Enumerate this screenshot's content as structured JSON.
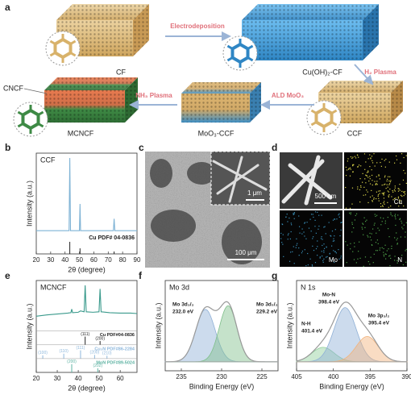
{
  "schematic": {
    "panel": "a",
    "samples": [
      "CF",
      "Cu(OH)₂-CF",
      "CCF",
      "MoO₃-CCF",
      "MCNCF"
    ],
    "inset_label": "CNCF",
    "steps": [
      "Electrodeposition",
      "H₂ Plasma",
      "ALD MoO₃",
      "NH₃ Plasma"
    ]
  },
  "sem": {
    "panel": "c",
    "scale_bars": [
      "100 μm",
      "1 μm"
    ]
  },
  "eds": {
    "panel": "d",
    "scale_bar": "500 nm",
    "elements": [
      "Cu",
      "Mo",
      "N"
    ]
  },
  "chart_data": [
    {
      "panel": "b",
      "type": "line",
      "label": "CCF",
      "x_label": "2θ (degree)",
      "y_label": "Intensity (a.u.)",
      "xlim": [
        20,
        90
      ],
      "xticks": [
        20,
        30,
        40,
        50,
        60,
        70,
        80,
        90
      ],
      "ylim": [
        0,
        100
      ],
      "color": "#7fb3d5",
      "x": [
        20,
        42.8,
        43.3,
        43.8,
        50,
        50.4,
        50.8,
        73.6,
        74.1,
        74.6,
        90
      ],
      "values": [
        2,
        2,
        100,
        2,
        2,
        38,
        2,
        2,
        18,
        2,
        2
      ],
      "references": [
        {
          "name": "Cu PDF# 04-0836",
          "color": "#222222",
          "x": [
            43.3,
            50.4,
            74.1
          ],
          "values": [
            100,
            46,
            20
          ]
        }
      ]
    },
    {
      "panel": "e",
      "type": "line",
      "label": "MCNCF",
      "x_label": "2θ (degree)",
      "y_label": "Intensity (a.u.)",
      "xlim": [
        20,
        68
      ],
      "xticks": [
        20,
        30,
        40,
        50,
        60
      ],
      "ylim": [
        0,
        100
      ],
      "color": "#3a9a8c",
      "x": [
        20,
        25,
        30,
        35,
        36.5,
        36.9,
        37.3,
        40,
        41.1,
        42.8,
        43.3,
        43.8,
        47,
        49.9,
        50.4,
        50.9,
        55,
        60,
        65,
        68
      ],
      "values": [
        30,
        33,
        35,
        37,
        38,
        46,
        38,
        39,
        42,
        40,
        100,
        40,
        39,
        40,
        92,
        40,
        38,
        37,
        37,
        36
      ],
      "references": [
        {
          "name": "Cu PDF#04-0836",
          "color": "#222222",
          "x": [
            43.3,
            50.4
          ],
          "values": [
            100,
            46
          ],
          "labels": [
            "(111)",
            "(200)"
          ]
        },
        {
          "name": "Cu₃N PDF#86-2284",
          "color": "#8fb8dc",
          "x": [
            23.1,
            33.1,
            41.1,
            47.8,
            53.7
          ],
          "values": [
            40,
            60,
            100,
            45,
            35
          ],
          "labels": [
            "(100)",
            "(110)",
            "(111)",
            "(200)",
            "(210)"
          ]
        },
        {
          "name": "MoN PDF#89-5024",
          "color": "#5fb3a3",
          "x": [
            36.9,
            49.3
          ],
          "values": [
            100,
            50
          ],
          "labels": [
            "(200)",
            "(202)"
          ]
        }
      ]
    },
    {
      "panel": "f",
      "type": "area",
      "label": "Mo 3d",
      "x_label": "Binding Energy (eV)",
      "y_label": "Intensity (a.u.)",
      "xlim": [
        237,
        223
      ],
      "xticks": [
        235,
        230,
        225
      ],
      "ylim": [
        0,
        100
      ],
      "background": 10,
      "components": [
        {
          "name": "Mo 3d₃/₂",
          "center": 232.0,
          "center_label": "232.0 eV",
          "amplitude": 58,
          "width": 1.2,
          "color": "#8fb0d6"
        },
        {
          "name": "Mo 3d₅/₂",
          "center": 229.2,
          "center_label": "229.2 eV",
          "amplitude": 62,
          "width": 1.1,
          "color": "#7fbf8a"
        }
      ]
    },
    {
      "panel": "g",
      "type": "area",
      "label": "N 1s",
      "x_label": "Binding Energy (eV)",
      "y_label": "Intensity (a.u.)",
      "xlim": [
        405,
        390
      ],
      "xticks": [
        405,
        400,
        395,
        390
      ],
      "ylim": [
        0,
        100
      ],
      "background": 10,
      "components": [
        {
          "name": "N-H",
          "center": 401.4,
          "center_label": "401.4 eV",
          "amplitude": 16,
          "width": 1.5,
          "color": "#8fcf9a"
        },
        {
          "name": "Mo-N",
          "center": 398.4,
          "center_label": "398.4 eV",
          "amplitude": 60,
          "width": 1.5,
          "color": "#8fb0d6"
        },
        {
          "name": "Mo 3p₃/₂",
          "center": 395.4,
          "center_label": "395.4 eV",
          "amplitude": 28,
          "width": 1.5,
          "color": "#f2b27a"
        }
      ]
    }
  ]
}
